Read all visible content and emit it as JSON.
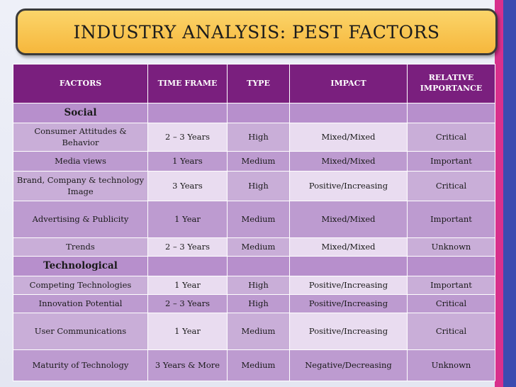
{
  "title": "INDUSTRY ANALYSIS: PEST FACTORS",
  "columns": [
    "FACTORS",
    "TIME FRAME",
    "TYPE",
    "IMPACT",
    "RELATIVE IMPORTANCE"
  ],
  "sections": [
    {
      "name": "Social",
      "rows": [
        {
          "factor": "Consumer Attitudes & Behavior",
          "time_frame": "2 – 3 Years",
          "type": "High",
          "impact": "Mixed/Mixed",
          "importance": "Critical"
        },
        {
          "factor": "Media views",
          "time_frame": "1 Years",
          "type": "Medium",
          "impact": "Mixed/Mixed",
          "importance": "Important"
        },
        {
          "factor": "Brand, Company & technology Image",
          "time_frame": "3 Years",
          "type": "High",
          "impact": "Positive/Increasing",
          "importance": "Critical"
        },
        {
          "factor": "Advertising & Publicity",
          "time_frame": "1 Year",
          "type": "Medium",
          "impact": "Mixed/Mixed",
          "importance": "Important"
        },
        {
          "factor": "Trends",
          "time_frame": "2 – 3 Years",
          "type": "Medium",
          "impact": "Mixed/Mixed",
          "importance": "Unknown"
        }
      ]
    },
    {
      "name": "Technological",
      "rows": [
        {
          "factor": "Competing Technologies",
          "time_frame": "1 Year",
          "type": "High",
          "impact": "Positive/Increasing",
          "importance": "Important"
        },
        {
          "factor": "Innovation Potential",
          "time_frame": "2 – 3 Years",
          "type": "High",
          "impact": "Positive/Increasing",
          "importance": "Critical"
        },
        {
          "factor": "User Communications",
          "time_frame": "1 Year",
          "type": "Medium",
          "impact": "Positive/Increasing",
          "importance": "Critical"
        },
        {
          "factor": "Maturity of Technology",
          "time_frame": "3 Years & More",
          "type": "Medium",
          "impact": "Negative/Decreasing",
          "importance": "Unknown"
        }
      ]
    }
  ]
}
